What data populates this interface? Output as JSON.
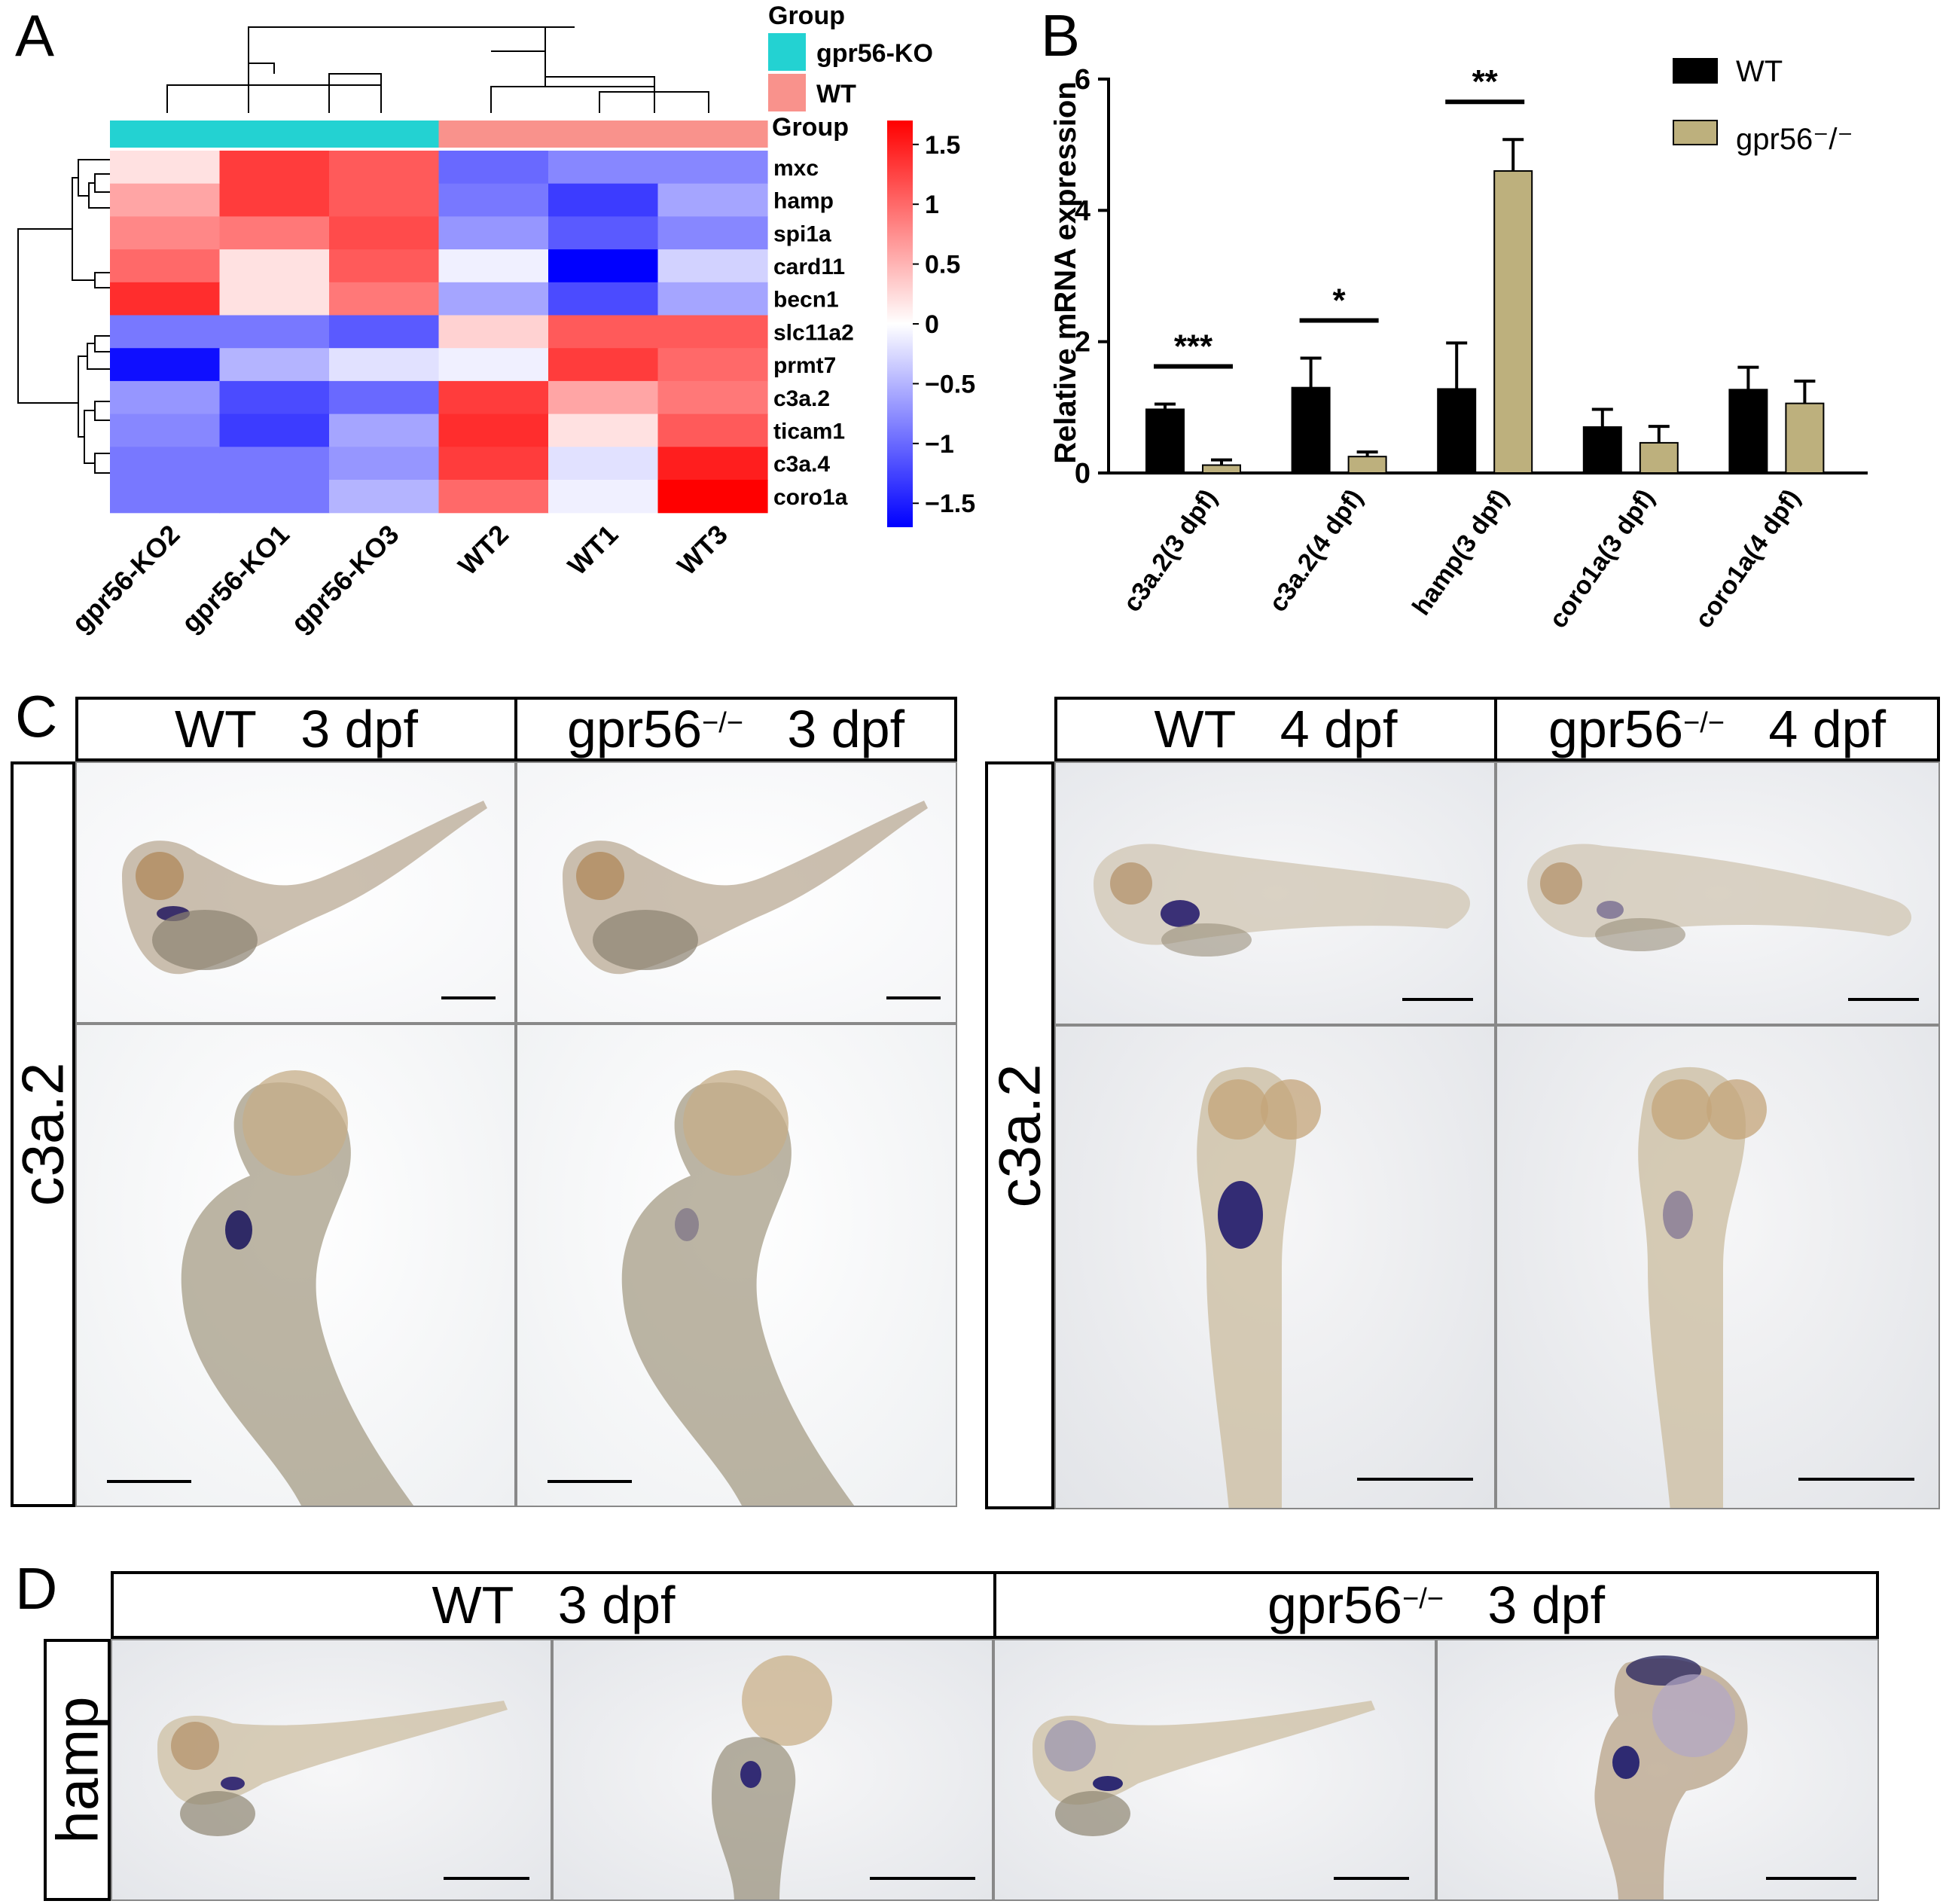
{
  "panels": {
    "a": "A",
    "b": "B",
    "c": "C",
    "d": "D"
  },
  "chart_data": [
    {
      "type": "heatmap",
      "rows": [
        "mxc",
        "hamp",
        "spi1a",
        "card11",
        "becn1",
        "slc11a2",
        "prmt7",
        "c3a.2",
        "ticam1",
        "c3a.4",
        "coro1a"
      ],
      "columns": [
        "gpr56-KO2",
        "gpr56-KO1",
        "gpr56-KO3",
        "WT2",
        "WT1",
        "WT3"
      ],
      "column_group": [
        "gpr56-KO",
        "gpr56-KO",
        "gpr56-KO",
        "WT",
        "WT",
        "WT"
      ],
      "values": [
        [
          0.2,
          1.3,
          1.1,
          -1.0,
          -0.8,
          -0.8
        ],
        [
          0.6,
          1.3,
          1.1,
          -0.9,
          -1.3,
          -0.6
        ],
        [
          0.8,
          0.9,
          1.2,
          -0.7,
          -1.1,
          -0.8
        ],
        [
          1.0,
          0.2,
          1.1,
          -0.1,
          -1.7,
          -0.3
        ],
        [
          1.4,
          0.2,
          0.9,
          -0.6,
          -1.2,
          -0.6
        ],
        [
          -0.9,
          -0.9,
          -1.1,
          0.3,
          1.1,
          1.1
        ],
        [
          -1.6,
          -0.5,
          -0.2,
          -0.1,
          1.3,
          1.0
        ],
        [
          -0.7,
          -1.2,
          -1.0,
          1.3,
          0.6,
          0.9
        ],
        [
          -0.8,
          -1.3,
          -0.6,
          1.4,
          0.2,
          1.1
        ],
        [
          -0.9,
          -0.9,
          -0.7,
          1.3,
          -0.2,
          1.5
        ],
        [
          -0.9,
          -0.9,
          -0.5,
          1.0,
          -0.1,
          1.7
        ]
      ],
      "legend_title": "Group",
      "legend_entries": [
        "gpr56-KO",
        "WT"
      ],
      "legend_colors": [
        "#23d2d2",
        "#f9928c"
      ],
      "annotation_label": "Group",
      "colorbar_ticks": [
        "1.5",
        "1",
        "0.5",
        "0",
        "−0.5",
        "−1",
        "−1.5"
      ],
      "colorbar_values": [
        1.5,
        1,
        0.5,
        0,
        -0.5,
        -1,
        -1.5
      ],
      "colorbar_range": [
        -1.7,
        1.7
      ],
      "colors": {
        "low": "#0000ff",
        "mid": "#ffffff",
        "high": "#ff0000"
      }
    },
    {
      "type": "bar",
      "categories": [
        "c3a.2(3 dpf)",
        "c3a.2(4 dpf)",
        "hamp(3 dpf)",
        "coro1a(3 dpf)",
        "coro1a(4 dpf)"
      ],
      "series": [
        {
          "name": "WT",
          "color": "#000000",
          "values": [
            0.97,
            1.3,
            1.28,
            0.7,
            1.27
          ],
          "errors": [
            0.08,
            0.45,
            0.7,
            0.27,
            0.34
          ]
        },
        {
          "name": "gpr56⁻/⁻",
          "color": "#bdb07d",
          "values": [
            0.12,
            0.25,
            4.6,
            0.46,
            1.06
          ],
          "errors": [
            0.08,
            0.07,
            0.48,
            0.25,
            0.34
          ]
        }
      ],
      "significance": [
        "***",
        "*",
        "**",
        "",
        ""
      ],
      "ylabel": "Relative mRNA expression",
      "ylim": [
        0,
        6
      ],
      "yticks": [
        0,
        2,
        4,
        6
      ],
      "legend_position": "top-right"
    }
  ],
  "panel_c": {
    "left": {
      "header1": {
        "name": "WT",
        "age": "3 dpf"
      },
      "header2": {
        "name": "gpr56",
        "sup": "−/−",
        "age": "3 dpf"
      },
      "gene": "c3a.2"
    },
    "right": {
      "header1": {
        "name": "WT",
        "age": "4 dpf"
      },
      "header2": {
        "name": "gpr56",
        "sup": "−/−",
        "age": "4 dpf"
      },
      "gene": "c3a.2"
    }
  },
  "panel_d": {
    "header1": {
      "name": "WT",
      "age": "3 dpf"
    },
    "header2": {
      "name": "gpr56",
      "sup": "−/−",
      "age": "3 dpf"
    },
    "gene": "hamp"
  }
}
